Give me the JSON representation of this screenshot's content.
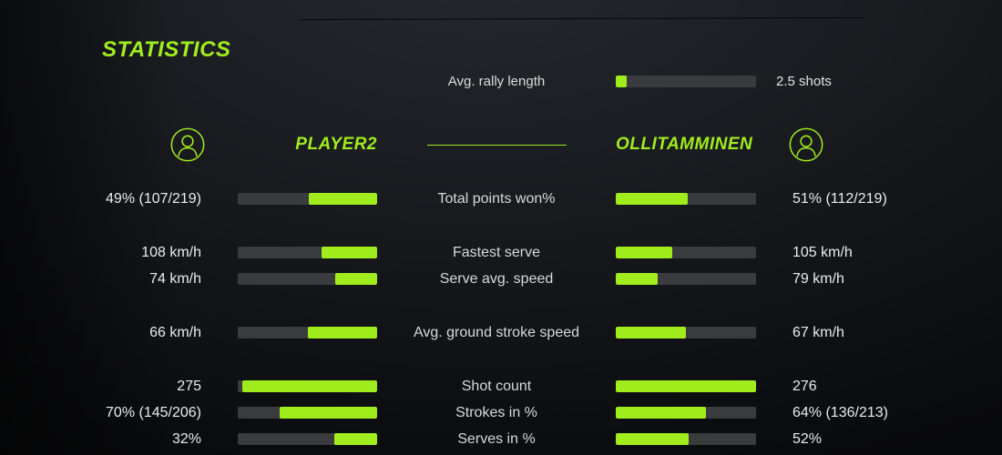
{
  "title": "STATISTICS",
  "colors": {
    "accent": "#a1ec1d",
    "bar_track": "#3a3b3c"
  },
  "icons": {
    "left_player": "person-circle-icon",
    "right_player": "person-circle-icon"
  },
  "chart_data": {
    "type": "bar",
    "title": "STATISTICS",
    "layout": "two-sided player comparison bars, labels centered, values outside",
    "shared_metric": {
      "label": "Avg. rally length",
      "value": "2.5 shots",
      "bar_fraction": 0.08
    },
    "categories": [
      "Total points won%",
      "Fastest serve",
      "Serve avg. speed",
      "Avg. ground stroke speed",
      "Shot count",
      "Strokes in %",
      "Serves in %"
    ],
    "group_breaks": [
      1,
      3,
      4
    ],
    "series": [
      {
        "name": "PLAYER2",
        "display": [
          "49% (107/219)",
          "108 km/h",
          "74 km/h",
          "66 km/h",
          "275",
          "70% (145/206)",
          "32%"
        ],
        "values": [
          49,
          108,
          74,
          66,
          275,
          70,
          32
        ],
        "bar_fractions": [
          0.49,
          0.4,
          0.3,
          0.5,
          0.97,
          0.7,
          0.31
        ]
      },
      {
        "name": "OLLITAMMINEN",
        "display": [
          "51% (112/219)",
          "105 km/h",
          "79 km/h",
          "67 km/h",
          "276",
          "64% (136/213)",
          "52%"
        ],
        "values": [
          51,
          105,
          79,
          67,
          276,
          64,
          52
        ],
        "bar_fractions": [
          0.51,
          0.4,
          0.3,
          0.5,
          1.0,
          0.64,
          0.52
        ]
      }
    ]
  }
}
